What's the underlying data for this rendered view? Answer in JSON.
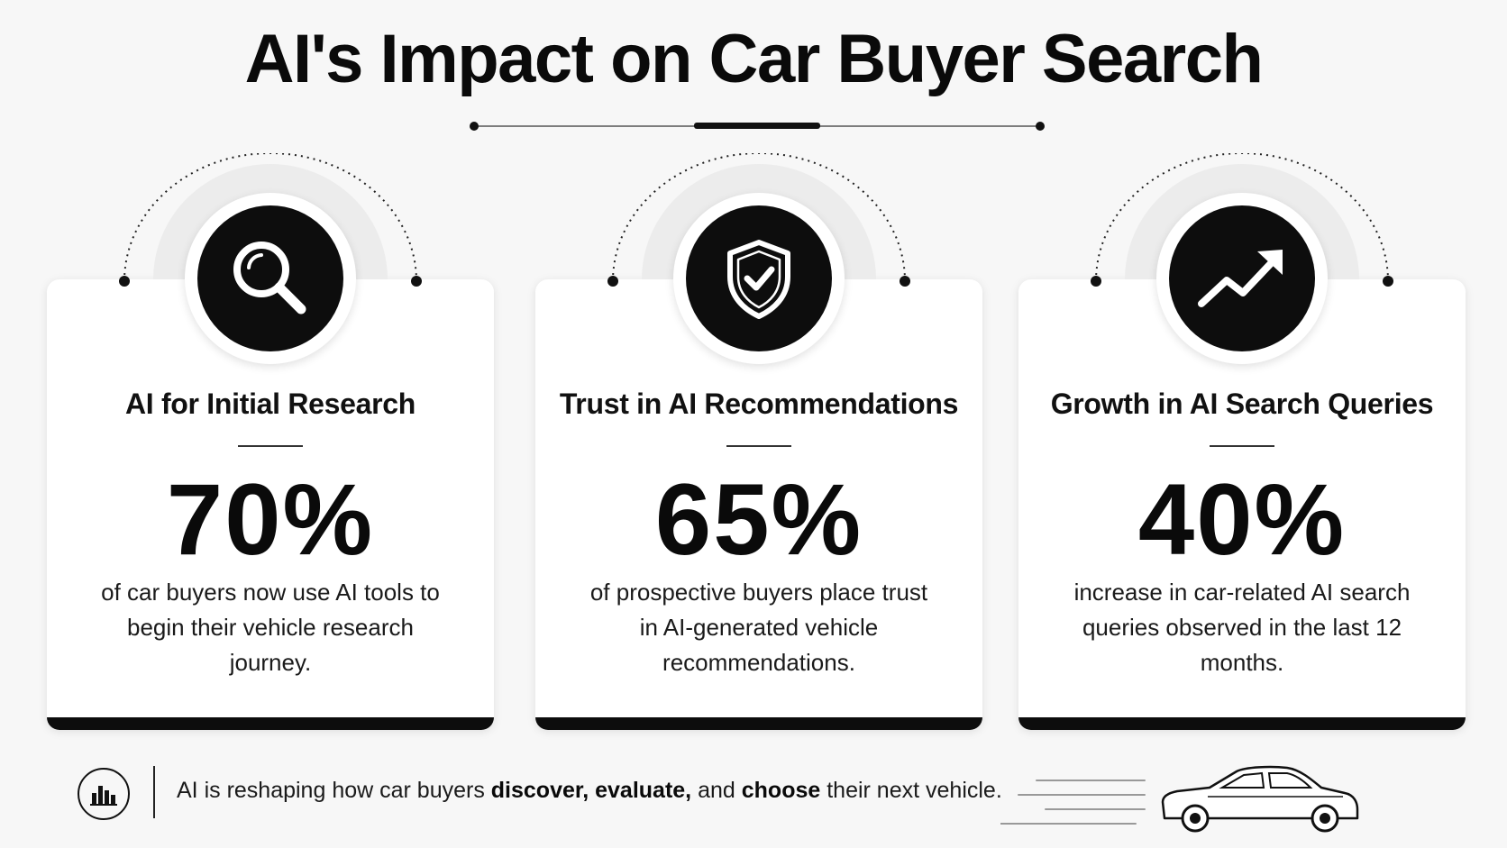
{
  "title": "AI's Impact on Car Buyer Search",
  "cards": [
    {
      "title": "AI for Initial Research",
      "stat": "70%",
      "description": "of car buyers now use AI tools to begin their vehicle research journey.",
      "icon": "magnifying-glass-icon"
    },
    {
      "title": "Trust in AI Recommendations",
      "stat": "65%",
      "description": "of prospective buyers place trust in AI-generated vehicle recommendations.",
      "icon": "shield-check-icon"
    },
    {
      "title": "Growth in AI Search Queries",
      "stat": "40%",
      "description": "increase in car-related AI search queries observed in the last 12 months.",
      "icon": "trending-up-icon"
    }
  ],
  "footer": {
    "icon": "bar-chart-icon",
    "text_prefix": "AI is reshaping how car buyers ",
    "bold_1": "discover, evaluate,",
    "text_mid": " and ",
    "bold_2": "choose",
    "text_suffix": " their next vehicle.",
    "car_icon": "car-icon"
  },
  "colors": {
    "background": "#f7f7f7",
    "card": "#ffffff",
    "accent": "#0d0d0d"
  }
}
